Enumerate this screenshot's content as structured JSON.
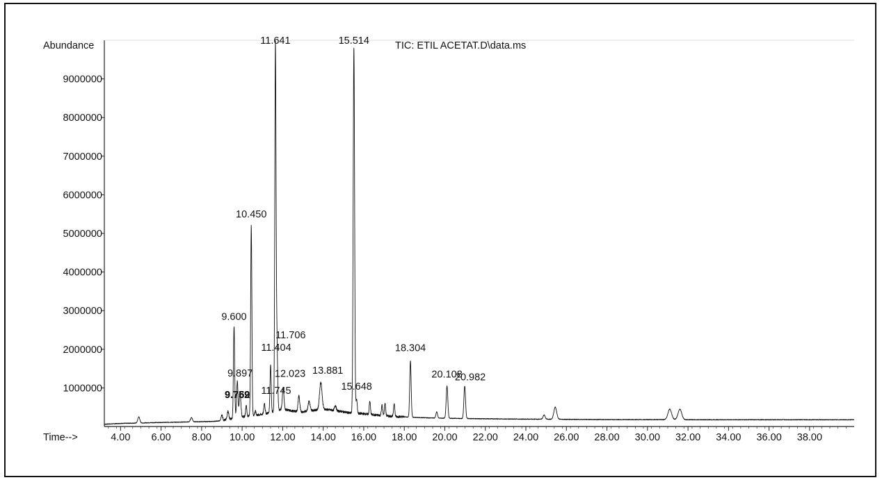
{
  "chart_data": {
    "type": "line",
    "title": "TIC: ETIL  ACETAT.D\\data.ms",
    "ylabel": "Abundance",
    "xlabel": "Time-->",
    "xlim": [
      3.2,
      40.2
    ],
    "ylim": [
      0,
      10000000
    ],
    "y_ticks": [
      1000000,
      2000000,
      3000000,
      4000000,
      5000000,
      6000000,
      7000000,
      8000000,
      9000000
    ],
    "y_tick_labels": [
      "1000000",
      "2000000",
      "3000000",
      "4000000",
      "5000000",
      "6000000",
      "7000000",
      "8000000",
      "9000000"
    ],
    "x_ticks": [
      4,
      6,
      8,
      10,
      12,
      14,
      16,
      18,
      20,
      22,
      24,
      26,
      28,
      30,
      32,
      34,
      36,
      38
    ],
    "x_tick_labels": [
      "4.00",
      "6.00",
      "8.00",
      "10.00",
      "12.00",
      "14.00",
      "16.00",
      "18.00",
      "20.00",
      "22.00",
      "24.00",
      "26.00",
      "28.00",
      "30.00",
      "32.00",
      "34.00",
      "36.00",
      "38.00"
    ],
    "grid": false,
    "legend": "none",
    "baseline": [
      [
        3.2,
        60000
      ],
      [
        4.0,
        80000
      ],
      [
        4.9,
        90000
      ],
      [
        5.5,
        100000
      ],
      [
        6.5,
        110000
      ],
      [
        7.5,
        120000
      ],
      [
        8.5,
        130000
      ],
      [
        9.0,
        150000
      ],
      [
        9.5,
        200000
      ],
      [
        10.0,
        250000
      ],
      [
        10.8,
        300000
      ],
      [
        11.3,
        350000
      ],
      [
        12.0,
        450000
      ],
      [
        12.5,
        400000
      ],
      [
        13.0,
        380000
      ],
      [
        13.5,
        420000
      ],
      [
        14.0,
        450000
      ],
      [
        14.5,
        420000
      ],
      [
        15.0,
        380000
      ],
      [
        15.3,
        350000
      ],
      [
        16.0,
        330000
      ],
      [
        16.5,
        300000
      ],
      [
        17.0,
        280000
      ],
      [
        17.5,
        260000
      ],
      [
        18.0,
        250000
      ],
      [
        18.8,
        230000
      ],
      [
        19.5,
        220000
      ],
      [
        20.5,
        210000
      ],
      [
        22.0,
        200000
      ],
      [
        23.0,
        195000
      ],
      [
        24.0,
        190000
      ],
      [
        25.0,
        190000
      ],
      [
        26.0,
        185000
      ],
      [
        28.0,
        180000
      ],
      [
        30.0,
        178000
      ],
      [
        31.0,
        178000
      ],
      [
        32.5,
        175000
      ],
      [
        34.0,
        175000
      ],
      [
        36.0,
        175000
      ],
      [
        38.0,
        175000
      ],
      [
        40.2,
        175000
      ]
    ],
    "peaks": [
      {
        "x": 4.9,
        "y": 250000,
        "w": 0.05
      },
      {
        "x": 7.5,
        "y": 230000,
        "w": 0.05
      },
      {
        "x": 9.0,
        "y": 300000,
        "w": 0.04
      },
      {
        "x": 9.3,
        "y": 400000,
        "w": 0.04
      },
      {
        "x": 9.6,
        "y": 2600000,
        "w": 0.03
      },
      {
        "x": 9.759,
        "y": 700000,
        "w": 0.04
      },
      {
        "x": 9.762,
        "y": 700000,
        "w": 0.03
      },
      {
        "x": 9.897,
        "y": 900000,
        "w": 0.04
      },
      {
        "x": 10.2,
        "y": 550000,
        "w": 0.03
      },
      {
        "x": 10.45,
        "y": 5200000,
        "w": 0.03
      },
      {
        "x": 10.65,
        "y": 400000,
        "w": 0.03
      },
      {
        "x": 11.1,
        "y": 600000,
        "w": 0.03
      },
      {
        "x": 11.404,
        "y": 1600000,
        "w": 0.03
      },
      {
        "x": 11.641,
        "y": 9800000,
        "w": 0.03
      },
      {
        "x": 11.706,
        "y": 2000000,
        "w": 0.03
      },
      {
        "x": 11.745,
        "y": 950000,
        "w": 0.03
      },
      {
        "x": 12.023,
        "y": 1000000,
        "w": 0.04
      },
      {
        "x": 12.8,
        "y": 800000,
        "w": 0.04
      },
      {
        "x": 13.3,
        "y": 650000,
        "w": 0.05
      },
      {
        "x": 13.881,
        "y": 1150000,
        "w": 0.06
      },
      {
        "x": 14.6,
        "y": 550000,
        "w": 0.04
      },
      {
        "x": 15.514,
        "y": 9800000,
        "w": 0.035
      },
      {
        "x": 15.648,
        "y": 700000,
        "w": 0.03
      },
      {
        "x": 16.3,
        "y": 650000,
        "w": 0.03
      },
      {
        "x": 16.9,
        "y": 550000,
        "w": 0.03
      },
      {
        "x": 17.05,
        "y": 600000,
        "w": 0.03
      },
      {
        "x": 17.5,
        "y": 600000,
        "w": 0.03
      },
      {
        "x": 18.304,
        "y": 1700000,
        "w": 0.035
      },
      {
        "x": 19.6,
        "y": 380000,
        "w": 0.04
      },
      {
        "x": 20.108,
        "y": 1050000,
        "w": 0.04
      },
      {
        "x": 20.982,
        "y": 1050000,
        "w": 0.04
      },
      {
        "x": 24.9,
        "y": 300000,
        "w": 0.05
      },
      {
        "x": 25.45,
        "y": 500000,
        "w": 0.07
      },
      {
        "x": 31.1,
        "y": 450000,
        "w": 0.09
      },
      {
        "x": 31.6,
        "y": 450000,
        "w": 0.09
      }
    ],
    "peak_labels": [
      {
        "x": 11.641,
        "text": "11.641",
        "y": 9800000
      },
      {
        "x": 15.514,
        "text": "15.514",
        "y": 9800000
      },
      {
        "x": 10.45,
        "text": "10.450",
        "y": 5200000
      },
      {
        "x": 9.6,
        "text": "9.600",
        "y": 2600000
      },
      {
        "x": 11.706,
        "text": "11.706",
        "y": 2000000
      },
      {
        "x": 11.404,
        "text": "11.404",
        "y": 1600000
      },
      {
        "x": 12.023,
        "text": "12.023",
        "y": 1000000
      },
      {
        "x": 11.745,
        "text": "11.745",
        "y": 950000
      },
      {
        "x": 13.881,
        "text": "13.881",
        "y": 1150000
      },
      {
        "x": 9.897,
        "text": "9.897",
        "y": 900000
      },
      {
        "x": 9.762,
        "text": "9.762",
        "y": 700000
      },
      {
        "x": 9.759,
        "text": "9.759",
        "y": 700000
      },
      {
        "x": 15.648,
        "text": "15.648",
        "y": 700000
      },
      {
        "x": 18.304,
        "text": "18.304",
        "y": 1700000
      },
      {
        "x": 20.108,
        "text": "20.108",
        "y": 1050000
      },
      {
        "x": 20.982,
        "text": "20.982",
        "y": 1050000
      }
    ]
  }
}
